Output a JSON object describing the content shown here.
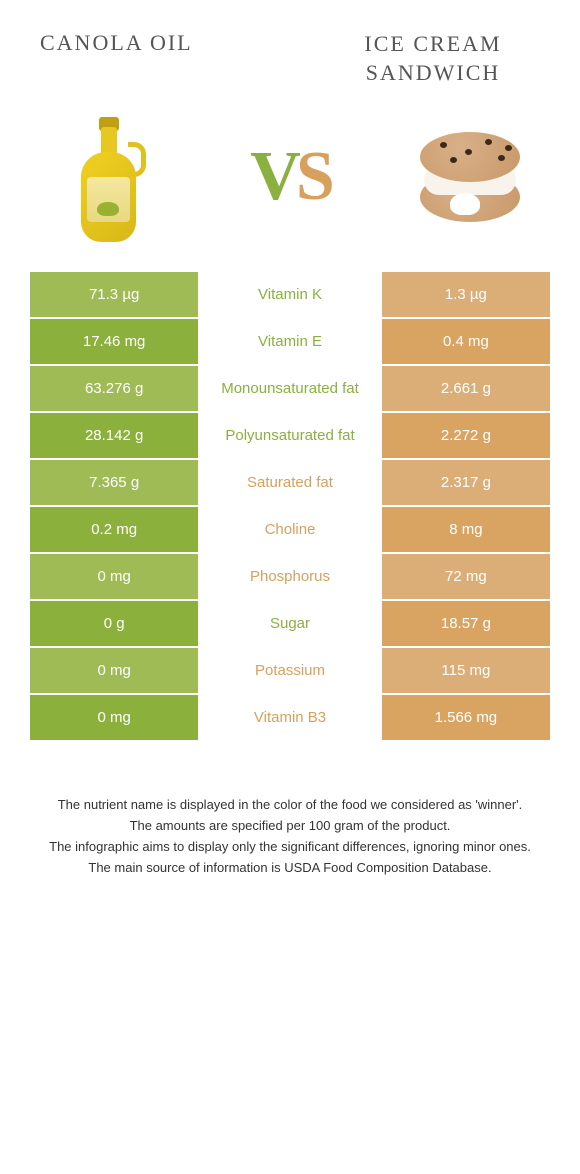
{
  "header": {
    "left_title": "CANOLA OIL",
    "right_title_line1": "ICE CREAM",
    "right_title_line2": "SANDWICH",
    "vs_v": "V",
    "vs_s": "S"
  },
  "colors": {
    "green": "#8ab040",
    "orange": "#d8a05c",
    "left_even": "#8cb03c",
    "left_odd": "#9fbb56",
    "right_even": "#d9a362",
    "right_odd": "#dbae77"
  },
  "rows": [
    {
      "left": "71.3 µg",
      "label": "Vitamin K",
      "right": "1.3 µg",
      "winner": "green"
    },
    {
      "left": "17.46 mg",
      "label": "Vitamin E",
      "right": "0.4 mg",
      "winner": "green"
    },
    {
      "left": "63.276 g",
      "label": "Monounsaturated fat",
      "right": "2.661 g",
      "winner": "green"
    },
    {
      "left": "28.142 g",
      "label": "Polyunsaturated fat",
      "right": "2.272 g",
      "winner": "green"
    },
    {
      "left": "7.365 g",
      "label": "Saturated fat",
      "right": "2.317 g",
      "winner": "orange"
    },
    {
      "left": "0.2 mg",
      "label": "Choline",
      "right": "8 mg",
      "winner": "orange"
    },
    {
      "left": "0 mg",
      "label": "Phosphorus",
      "right": "72 mg",
      "winner": "orange"
    },
    {
      "left": "0 g",
      "label": "Sugar",
      "right": "18.57 g",
      "winner": "green"
    },
    {
      "left": "0 mg",
      "label": "Potassium",
      "right": "115 mg",
      "winner": "orange"
    },
    {
      "left": "0 mg",
      "label": "Vitamin B3",
      "right": "1.566 mg",
      "winner": "orange"
    }
  ],
  "footer": {
    "line1": "The nutrient name is displayed in the color of the food we considered as 'winner'.",
    "line2": "The amounts are specified per 100 gram of the product.",
    "line3": "The infographic aims to display only the significant differences, ignoring minor ones.",
    "line4": "The main source of information is USDA Food Composition Database."
  }
}
